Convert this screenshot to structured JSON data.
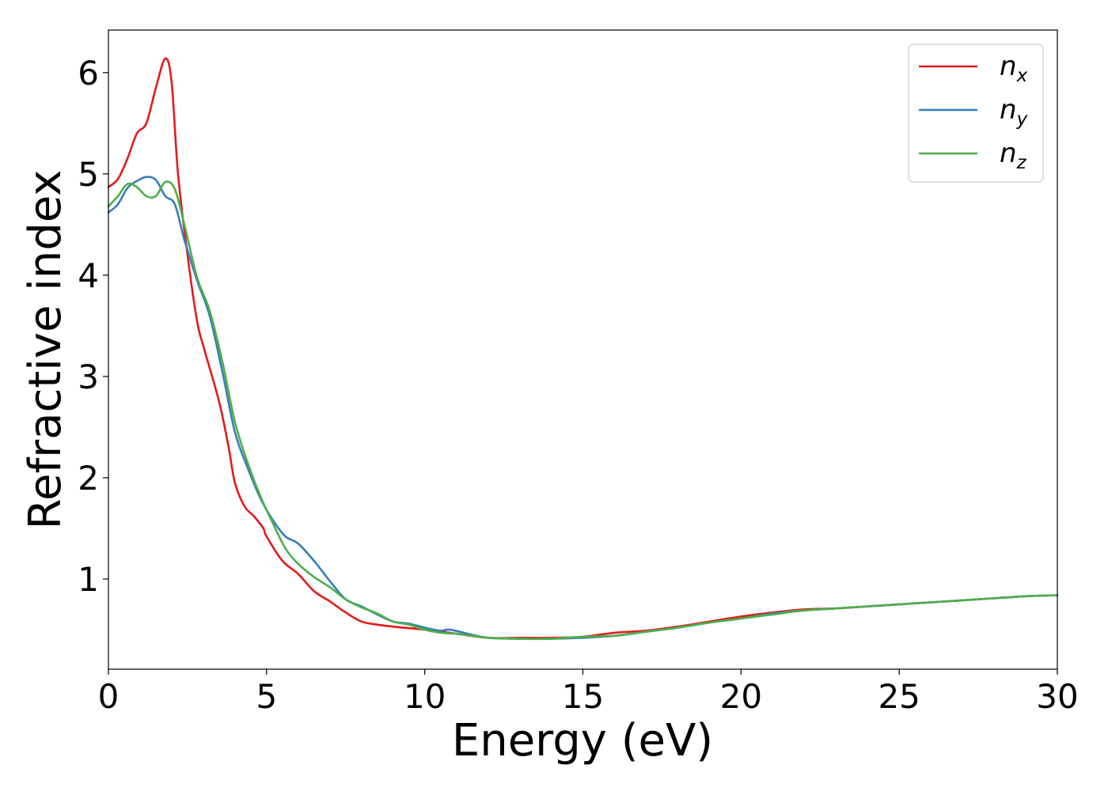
{
  "chart_data": {
    "type": "line",
    "xlabel": "Energy (eV)",
    "ylabel": "Refractive index",
    "xlim": [
      0,
      30
    ],
    "ylim": [
      0.11,
      6.42
    ],
    "xticks": [
      0,
      5,
      10,
      15,
      20,
      25,
      30
    ],
    "xtick_labels": [
      "0",
      "5",
      "10",
      "15",
      "20",
      "25",
      "30"
    ],
    "yticks": [
      1,
      2,
      3,
      4,
      5,
      6
    ],
    "ytick_labels": [
      "1",
      "2",
      "3",
      "4",
      "5",
      "6"
    ],
    "grid": false,
    "legend_position": "top-right",
    "series": [
      {
        "name": "n",
        "sub": "x",
        "color": "#e41a1c",
        "x": [
          0,
          0.3,
          0.6,
          0.9,
          1.2,
          1.5,
          1.8,
          2.0,
          2.2,
          2.5,
          2.8,
          3.0,
          3.5,
          3.8,
          4.0,
          4.3,
          4.6,
          4.9,
          5.0,
          5.5,
          6.0,
          6.5,
          7.0,
          7.5,
          8.0,
          8.5,
          9.0,
          10.0,
          11.0,
          12.0,
          13.0,
          14.0,
          15.0,
          16.0,
          17.0,
          18.0,
          19.0,
          20.0,
          21.0,
          22.0,
          23.0,
          24.0,
          25.0,
          26.0,
          27.0,
          28.0,
          29.0,
          30.0
        ],
        "y": [
          4.87,
          4.95,
          5.15,
          5.4,
          5.5,
          5.85,
          6.14,
          5.9,
          5.0,
          4.2,
          3.55,
          3.3,
          2.75,
          2.3,
          1.95,
          1.72,
          1.62,
          1.5,
          1.42,
          1.18,
          1.05,
          0.88,
          0.78,
          0.67,
          0.58,
          0.55,
          0.53,
          0.5,
          0.46,
          0.42,
          0.42,
          0.42,
          0.43,
          0.47,
          0.49,
          0.53,
          0.58,
          0.63,
          0.67,
          0.7,
          0.71,
          0.73,
          0.75,
          0.77,
          0.79,
          0.81,
          0.83,
          0.84
        ]
      },
      {
        "name": "n",
        "sub": "y",
        "color": "#377eb8",
        "x": [
          0,
          0.3,
          0.6,
          0.9,
          1.2,
          1.5,
          1.8,
          2.1,
          2.4,
          2.8,
          3.2,
          3.6,
          4.0,
          4.4,
          4.8,
          5.2,
          5.6,
          6.0,
          6.5,
          7.0,
          7.5,
          8.0,
          8.5,
          9.0,
          9.5,
          10.0,
          10.5,
          10.8,
          11.5,
          12.0,
          13.0,
          14.0,
          15.0,
          16.0,
          17.0,
          18.0,
          19.0,
          20.0,
          21.0,
          22.0,
          23.0,
          24.0,
          25.0,
          26.0,
          27.0,
          28.0,
          29.0,
          30.0
        ],
        "y": [
          4.62,
          4.7,
          4.86,
          4.93,
          4.97,
          4.94,
          4.78,
          4.7,
          4.35,
          3.95,
          3.6,
          3.05,
          2.45,
          2.1,
          1.8,
          1.58,
          1.42,
          1.35,
          1.18,
          0.98,
          0.8,
          0.73,
          0.65,
          0.58,
          0.56,
          0.52,
          0.49,
          0.5,
          0.45,
          0.42,
          0.41,
          0.41,
          0.42,
          0.44,
          0.48,
          0.52,
          0.57,
          0.61,
          0.66,
          0.69,
          0.71,
          0.73,
          0.75,
          0.77,
          0.79,
          0.81,
          0.83,
          0.84
        ]
      },
      {
        "name": "n",
        "sub": "z",
        "color": "#4daf4a",
        "x": [
          0,
          0.3,
          0.6,
          0.9,
          1.2,
          1.5,
          1.8,
          2.1,
          2.4,
          2.8,
          3.2,
          3.6,
          4.0,
          4.4,
          4.8,
          5.2,
          5.6,
          6.0,
          6.5,
          7.0,
          7.5,
          8.0,
          8.5,
          9.0,
          9.5,
          10.0,
          10.5,
          11.0,
          11.5,
          12.0,
          13.0,
          14.0,
          15.0,
          16.0,
          17.0,
          18.0,
          19.0,
          20.0,
          21.0,
          22.0,
          23.0,
          24.0,
          25.0,
          26.0,
          27.0,
          28.0,
          29.0,
          30.0
        ],
        "y": [
          4.68,
          4.78,
          4.9,
          4.87,
          4.78,
          4.78,
          4.92,
          4.85,
          4.5,
          3.98,
          3.65,
          3.15,
          2.55,
          2.15,
          1.82,
          1.55,
          1.3,
          1.15,
          1.02,
          0.92,
          0.8,
          0.72,
          0.66,
          0.58,
          0.55,
          0.5,
          0.47,
          0.46,
          0.44,
          0.42,
          0.41,
          0.41,
          0.43,
          0.44,
          0.48,
          0.52,
          0.57,
          0.61,
          0.65,
          0.69,
          0.71,
          0.73,
          0.75,
          0.77,
          0.79,
          0.81,
          0.83,
          0.84
        ]
      }
    ]
  }
}
